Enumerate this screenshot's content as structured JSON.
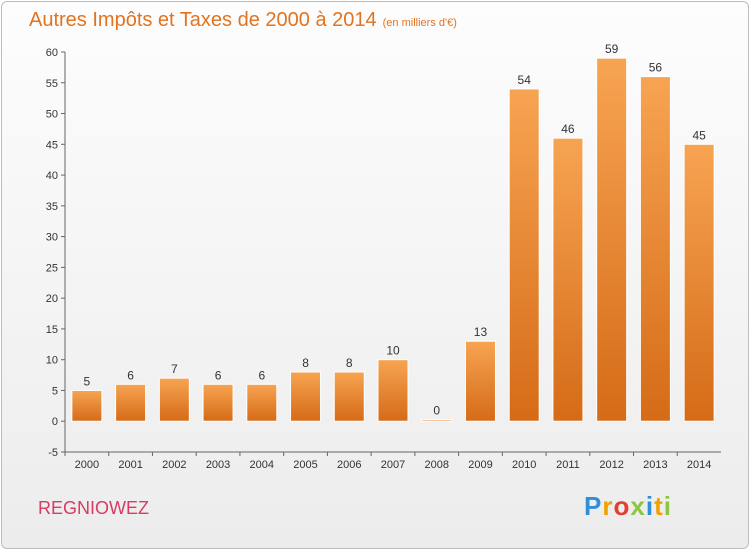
{
  "title": "Autres Impôts et Taxes de 2000 à 2014",
  "title_unit": "(en milliers d'€)",
  "commune": "REGNIOWEZ",
  "logo": {
    "text": "Proxiti",
    "letter_colors": [
      "#2f8fd8",
      "#f2a000",
      "#e33f2f",
      "#8cc63f",
      "#2f8fd8",
      "#f2a000",
      "#8cc63f"
    ]
  },
  "colors": {
    "title": "#e2731f",
    "commune": "#d83c62",
    "bar_light": "#f7a452",
    "bar_dark": "#d56b17"
  },
  "chart_data": {
    "type": "bar",
    "title": "Autres Impôts et Taxes de 2000 à 2014",
    "categories": [
      "2000",
      "2001",
      "2002",
      "2003",
      "2004",
      "2005",
      "2006",
      "2007",
      "2008",
      "2009",
      "2010",
      "2011",
      "2012",
      "2013",
      "2014"
    ],
    "values": [
      5,
      6,
      7,
      6,
      6,
      8,
      8,
      10,
      0,
      13,
      54,
      46,
      59,
      56,
      45
    ],
    "ylim": [
      -5,
      60
    ],
    "yticks": [
      -5,
      0,
      5,
      10,
      15,
      20,
      25,
      30,
      35,
      40,
      45,
      50,
      55,
      60
    ],
    "grid": false,
    "data_labels": true
  }
}
